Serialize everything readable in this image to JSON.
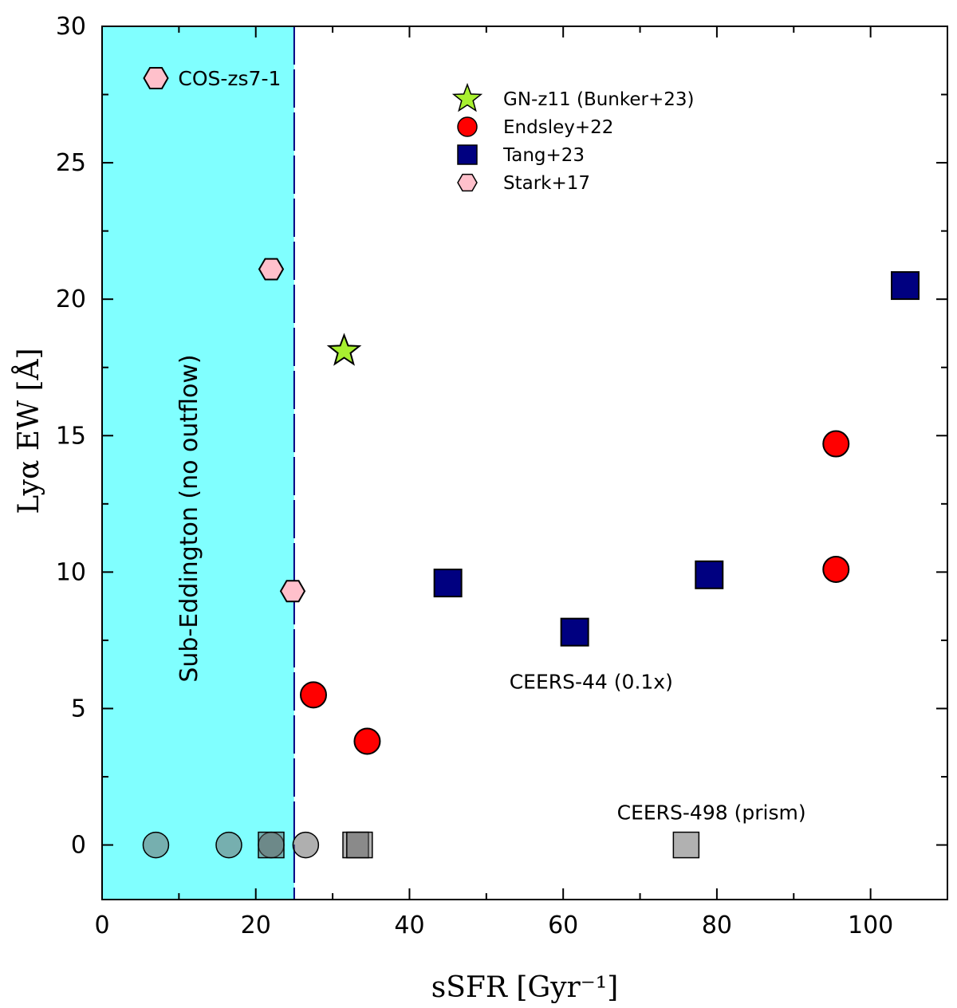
{
  "chart_data": {
    "type": "scatter",
    "xlabel": "sSFR [Gyr⁻¹]",
    "ylabel": "Lyα EW [Å]",
    "xlim": [
      0,
      110
    ],
    "ylim": [
      -2,
      30
    ],
    "x_ticks": [
      0,
      20,
      40,
      60,
      80,
      100
    ],
    "y_ticks": [
      0,
      5,
      10,
      15,
      20,
      25,
      30
    ],
    "grid": false,
    "legend_position": "top-center",
    "shaded_region": {
      "x_from": 0,
      "x_to": 25,
      "color": "#80ffff",
      "label": "Sub-Eddington (no outflow)"
    },
    "boundary_line_x": 25,
    "series": [
      {
        "name": "GN-z11 (Bunker+23)",
        "marker": "star",
        "color": "#a8f030",
        "points": [
          {
            "x": 31.5,
            "y": 18.1
          }
        ]
      },
      {
        "name": "Endsley+22",
        "marker": "circle",
        "color": "#ff0000",
        "points": [
          {
            "x": 27.5,
            "y": 5.5
          },
          {
            "x": 34.5,
            "y": 3.8
          },
          {
            "x": 95.5,
            "y": 14.7
          },
          {
            "x": 95.5,
            "y": 10.1
          }
        ]
      },
      {
        "name": "Tang+23",
        "marker": "square",
        "color": "#000080",
        "points": [
          {
            "x": 45,
            "y": 9.6
          },
          {
            "x": 61.5,
            "y": 7.8
          },
          {
            "x": 79,
            "y": 9.9
          },
          {
            "x": 104.5,
            "y": 20.5
          }
        ]
      },
      {
        "name": "Stark+17",
        "marker": "hexagon",
        "color": "#ffc0cb",
        "points": [
          {
            "x": 7,
            "y": 28.1
          },
          {
            "x": 22,
            "y": 21.1
          },
          {
            "x": 24.8,
            "y": 9.3
          }
        ]
      }
    ],
    "non_detections": [
      {
        "x": 7,
        "y": 0,
        "marker": "circle"
      },
      {
        "x": 16.5,
        "y": 0,
        "marker": "circle"
      },
      {
        "x": 22,
        "y": 0,
        "marker": "circle"
      },
      {
        "x": 26.5,
        "y": 0,
        "marker": "circle"
      },
      {
        "x": 22,
        "y": 0,
        "marker": "square"
      },
      {
        "x": 33,
        "y": 0,
        "marker": "square"
      },
      {
        "x": 33.5,
        "y": 0,
        "marker": "square"
      },
      {
        "x": 76,
        "y": 0,
        "marker": "square"
      }
    ],
    "annotations": [
      {
        "text": "COS-zs7-1",
        "x": 9.9,
        "y": 28.1
      },
      {
        "text": "CEERS-44 (0.1x)",
        "x": 53,
        "y": 6.0
      },
      {
        "text": "CEERS-498 (prism)",
        "x": 67,
        "y": 1.2
      }
    ]
  }
}
